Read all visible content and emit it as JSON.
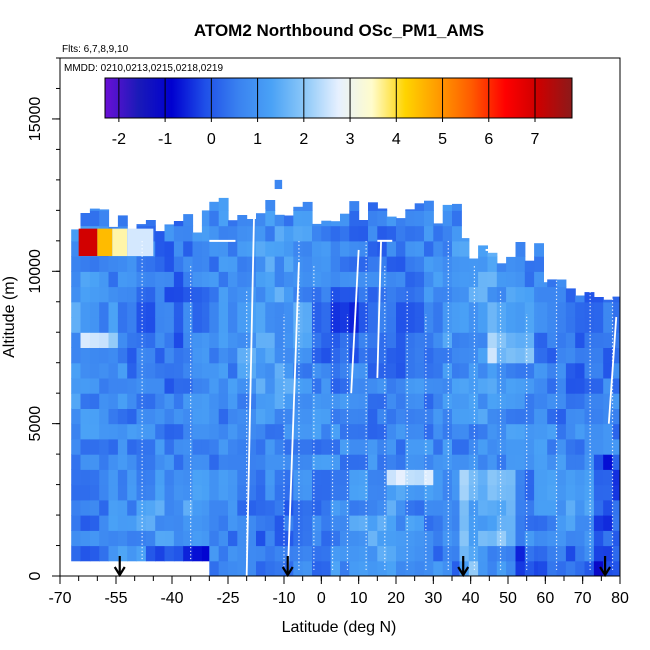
{
  "chart_data": {
    "type": "heatmap",
    "title": "ATOM2 Northbound OSc_PM1_AMS",
    "flights_note": "Flts: 6,7,8,9,10",
    "dates_note": "MMDD: 0210,0213,0215,0218,0219",
    "xlabel": "Latitude (deg N)",
    "ylabel": "Altitude (m)",
    "xlim": [
      -70,
      80
    ],
    "ylim": [
      0,
      17000
    ],
    "x_ticks": [
      -70,
      -55,
      -40,
      -25,
      -10,
      0,
      10,
      20,
      30,
      40,
      50,
      60,
      70,
      80
    ],
    "y_ticks": [
      0,
      5000,
      10000,
      15000
    ],
    "colorbar": {
      "range": [
        -2.3,
        7.8
      ],
      "ticks": [
        -2,
        -1,
        0,
        1,
        2,
        3,
        4,
        5,
        6,
        7
      ],
      "colors": [
        "#6a0fd6",
        "#1a1ab8",
        "#0000d0",
        "#1f4fe8",
        "#3a82f0",
        "#4aa2f6",
        "#8ec9f8",
        "#e6f0ff",
        "#fffccc",
        "#ffd400",
        "#ff9a00",
        "#ff5a00",
        "#ff0000",
        "#cc0000",
        "#8c1a1a"
      ]
    },
    "coverage": [
      {
        "lat0": -67,
        "lat1": -30,
        "alt0": 500,
        "alt1": 11700
      },
      {
        "lat0": -30,
        "lat1": 5,
        "alt0": 0,
        "alt1": 12000
      },
      {
        "lat0": 5,
        "lat1": 37,
        "alt0": 0,
        "alt1": 12000
      },
      {
        "lat0": 37,
        "lat1": 58,
        "alt0": 0,
        "alt1": 10700
      },
      {
        "lat0": 58,
        "lat1": 80,
        "alt0": 0,
        "alt1": 9500
      }
    ],
    "profile_latitudes": [
      -48,
      -35,
      -20,
      -10,
      -6,
      -2,
      3,
      7,
      12,
      17,
      23,
      28,
      34,
      41,
      48,
      55,
      63,
      72,
      78
    ],
    "ascent_descent_tracks": [
      {
        "lat_start": -20,
        "lat_end": -18,
        "alt_start": 0,
        "alt_end": 12000
      },
      {
        "lat_start": -9,
        "lat_end": -6,
        "alt_start": 0,
        "alt_end": 10300
      },
      {
        "lat_start": 8,
        "lat_end": 10,
        "alt_start": 6000,
        "alt_end": 10700
      },
      {
        "lat_start": 15,
        "lat_end": 16,
        "alt_start": 6500,
        "alt_end": 11000
      },
      {
        "lat_start": 77,
        "lat_end": 79,
        "alt_start": 5000,
        "alt_end": 8500
      }
    ],
    "landing_latitudes": [
      -54,
      -9,
      38,
      76
    ]
  }
}
